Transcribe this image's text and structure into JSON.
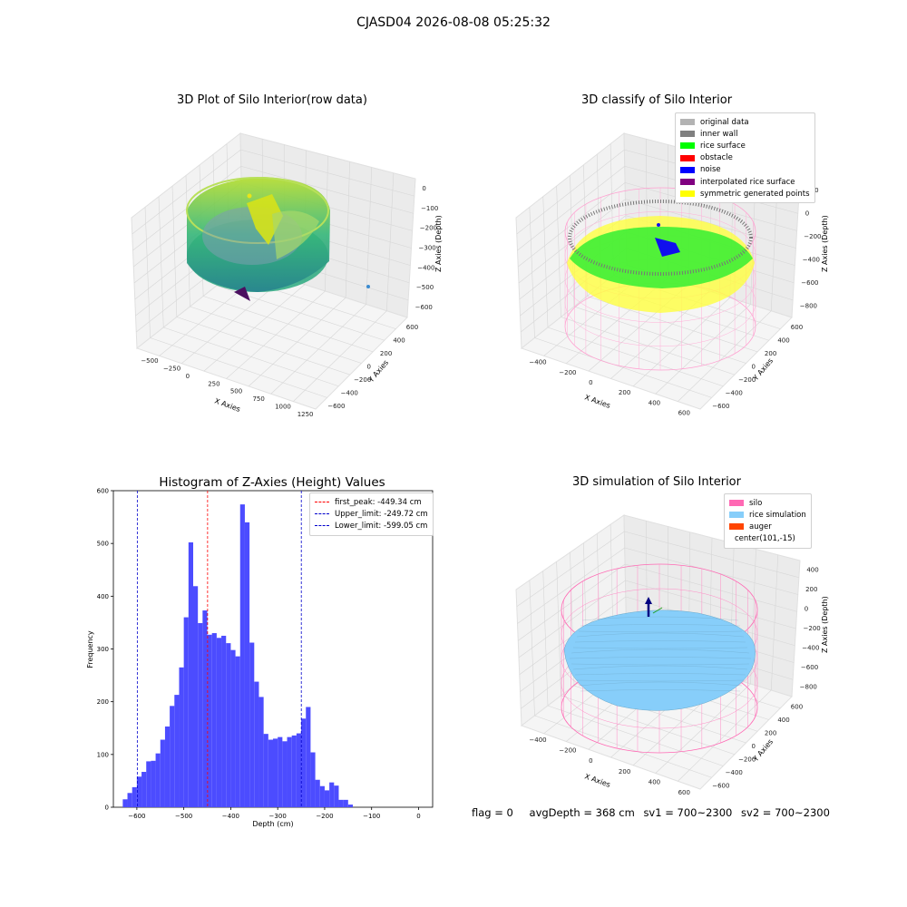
{
  "suptitle": "CJASD04 2026-08-08 05:25:32",
  "colors": {
    "hist_bar": "#4c4cff",
    "first_peak": "#ff0000",
    "limit": "#0000cc",
    "silo": "#ff69b4",
    "rice_simulation": "#87cefa",
    "auger": "#ff4500"
  },
  "chart_data": [
    {
      "type": "scatter",
      "title": "3D Plot of Silo Interior(row data)",
      "xlabel": "X Axies",
      "ylabel": "Y Axies",
      "zlabel": "Z Axies (Depth)",
      "xticks": [
        "−500",
        "−250",
        "0",
        "250",
        "500",
        "750",
        "1000",
        "1250"
      ],
      "yticks": [
        "600",
        "400",
        "200",
        "0",
        "−200",
        "−400",
        "−600"
      ],
      "zticks": [
        "0",
        "−100",
        "−200",
        "−300",
        "−400",
        "−500",
        "−600"
      ],
      "xlim": [
        -600,
        1300
      ],
      "ylim": [
        -650,
        650
      ],
      "zlim": [
        -650,
        0
      ]
    },
    {
      "type": "scatter",
      "title": "3D classify of Silo Interior",
      "xlabel": "X Axies",
      "ylabel": "Y Axies",
      "zlabel": "Z Axies (Depth)",
      "xticks": [
        "−400",
        "−200",
        "0",
        "200",
        "400",
        "600"
      ],
      "yticks": [
        "600",
        "400",
        "200",
        "0",
        "−200",
        "−400",
        "−600"
      ],
      "zticks": [
        "200",
        "0",
        "−200",
        "−400",
        "−600",
        "−800"
      ],
      "legend": [
        {
          "label": "original data",
          "color": "#b3b3b3"
        },
        {
          "label": "inner wall",
          "color": "#808080"
        },
        {
          "label": "rice surface",
          "color": "#00ff00"
        },
        {
          "label": "obstacle",
          "color": "#ff0000"
        },
        {
          "label": "noise",
          "color": "#0000ff"
        },
        {
          "label": "interpolated rice surface",
          "color": "#800080"
        },
        {
          "label": "symmetric generated points",
          "color": "#ffff00"
        }
      ]
    },
    {
      "type": "bar",
      "title": "Histogram of Z-Axies (Height) Values",
      "xlabel": "Depth (cm)",
      "ylabel": "Frequency",
      "xlim": [
        -650,
        30
      ],
      "ylim": [
        0,
        600
      ],
      "xticks": [
        -600,
        -500,
        -400,
        -300,
        -200,
        -100,
        0
      ],
      "yticks": [
        0,
        100,
        200,
        300,
        400,
        500,
        600
      ],
      "bin_start": -630,
      "bin_width": 10,
      "values": [
        15,
        27,
        38,
        58,
        67,
        87,
        88,
        102,
        128,
        153,
        192,
        213,
        265,
        360,
        502,
        419,
        349,
        373,
        327,
        330,
        321,
        325,
        311,
        298,
        286,
        574,
        540,
        312,
        238,
        209,
        139,
        128,
        130,
        133,
        125,
        133,
        136,
        140,
        168,
        190,
        104,
        52,
        40,
        32,
        47,
        41,
        14,
        14,
        5
      ],
      "lines": [
        {
          "label": "first_peak: -449.34 cm",
          "x": -449.34,
          "color": "#ff0000"
        },
        {
          "label": "Upper_limit: -249.72 cm",
          "x": -249.72,
          "color": "#0000cc"
        },
        {
          "label": "Lower_limit: -599.05 cm",
          "x": -599.05,
          "color": "#0000cc"
        }
      ],
      "legend_position": "top-right"
    },
    {
      "type": "area",
      "title": "3D simulation of Silo Interior",
      "xlabel": "X Axies",
      "ylabel": "Y Axies",
      "zlabel": "Z Axies (Depth)",
      "xticks": [
        "−400",
        "−200",
        "0",
        "200",
        "400",
        "600"
      ],
      "yticks": [
        "600",
        "400",
        "200",
        "0",
        "−200",
        "−400",
        "−600"
      ],
      "zticks": [
        "400",
        "200",
        "0",
        "−200",
        "−400",
        "−600",
        "−800"
      ],
      "legend": [
        {
          "label": "silo",
          "color": "#ff69b4"
        },
        {
          "label": "rice simulation",
          "color": "#87cefa"
        },
        {
          "label": "auger",
          "color": "#ff4500"
        },
        {
          "label": "center(101,-15)",
          "color": ""
        }
      ]
    }
  ],
  "status": {
    "flag": "flag = 0",
    "avg_depth": "avgDepth = 368 cm",
    "sv1": "sv1 = 700~2300",
    "sv2": "sv2 = 700~2300"
  }
}
